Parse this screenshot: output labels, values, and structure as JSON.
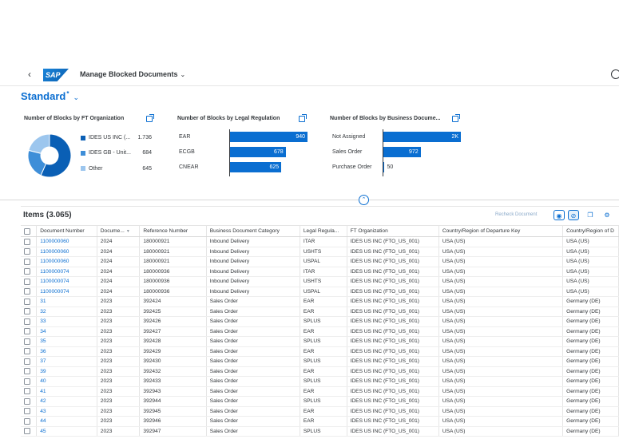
{
  "shell": {
    "logo": "SAP",
    "app_title": "Manage Blocked Documents"
  },
  "variant": {
    "name": "Standard",
    "modified_marker": "*"
  },
  "charts": [
    {
      "title": "Number of Blocks by FT Organization",
      "type": "donut",
      "legend": [
        {
          "label": "IDES US INC (...",
          "value": "1.736",
          "color": "#0a5fb5"
        },
        {
          "label": "IDES GB - Unit...",
          "value": "684",
          "color": "#3e8ed8"
        },
        {
          "label": "Other",
          "value": "645",
          "color": "#9cc6ee"
        }
      ]
    },
    {
      "title": "Number of Blocks by Legal Regulation",
      "type": "bar",
      "categories": [
        "EAR",
        "ECGB",
        "CNEAR"
      ],
      "values": [
        940,
        678,
        625
      ],
      "labels": [
        "940",
        "678",
        "625"
      ]
    },
    {
      "title": "Number of Blocks by Business Docume...",
      "type": "bar",
      "categories": [
        "Not Assigned",
        "Sales Order",
        "Purchase Order"
      ],
      "values": [
        2000,
        972,
        50
      ],
      "labels": [
        "2K",
        "972",
        "50"
      ]
    }
  ],
  "chart_data": [
    {
      "type": "pie",
      "title": "Number of Blocks by FT Organization",
      "categories": [
        "IDES US INC (...",
        "IDES GB - Unit...",
        "Other"
      ],
      "values": [
        1736,
        684,
        645
      ]
    },
    {
      "type": "bar",
      "title": "Number of Blocks by Legal Regulation",
      "categories": [
        "EAR",
        "ECGB",
        "CNEAR"
      ],
      "values": [
        940,
        678,
        625
      ]
    },
    {
      "type": "bar",
      "title": "Number of Blocks by Business Docume...",
      "categories": [
        "Not Assigned",
        "Sales Order",
        "Purchase Order"
      ],
      "values": [
        2000,
        972,
        50
      ]
    }
  ],
  "table": {
    "title": "Items (3.065)",
    "recheck_label": "Recheck Document",
    "columns": [
      "Document Number",
      "Docume...",
      "Reference Number",
      "Business Document Category",
      "Legal Regula...",
      "FT Organization",
      "Country/Region of Departure Key",
      "Country/Region of D"
    ],
    "rows": [
      [
        "1100000060",
        "2024",
        "180000921",
        "Inbound Delivery",
        "ITAR",
        "IDES US INC (FTO_US_001)",
        "USA (US)",
        "USA (US)"
      ],
      [
        "1100000060",
        "2024",
        "180000921",
        "Inbound Delivery",
        "USHTS",
        "IDES US INC (FTO_US_001)",
        "USA (US)",
        "USA (US)"
      ],
      [
        "1100000060",
        "2024",
        "180000921",
        "Inbound Delivery",
        "USPAL",
        "IDES US INC (FTO_US_001)",
        "USA (US)",
        "USA (US)"
      ],
      [
        "1100000074",
        "2024",
        "180000936",
        "Inbound Delivery",
        "ITAR",
        "IDES US INC (FTO_US_001)",
        "USA (US)",
        "USA (US)"
      ],
      [
        "1100000074",
        "2024",
        "180000936",
        "Inbound Delivery",
        "USHTS",
        "IDES US INC (FTO_US_001)",
        "USA (US)",
        "USA (US)"
      ],
      [
        "1100000074",
        "2024",
        "180000936",
        "Inbound Delivery",
        "USPAL",
        "IDES US INC (FTO_US_001)",
        "USA (US)",
        "USA (US)"
      ],
      [
        "31",
        "2023",
        "392424",
        "Sales Order",
        "EAR",
        "IDES US INC (FTO_US_001)",
        "USA (US)",
        "Germany (DE)"
      ],
      [
        "32",
        "2023",
        "392425",
        "Sales Order",
        "EAR",
        "IDES US INC (FTO_US_001)",
        "USA (US)",
        "Germany (DE)"
      ],
      [
        "33",
        "2023",
        "392426",
        "Sales Order",
        "SPLUS",
        "IDES US INC (FTO_US_001)",
        "USA (US)",
        "Germany (DE)"
      ],
      [
        "34",
        "2023",
        "392427",
        "Sales Order",
        "EAR",
        "IDES US INC (FTO_US_001)",
        "USA (US)",
        "Germany (DE)"
      ],
      [
        "35",
        "2023",
        "392428",
        "Sales Order",
        "SPLUS",
        "IDES US INC (FTO_US_001)",
        "USA (US)",
        "Germany (DE)"
      ],
      [
        "36",
        "2023",
        "392429",
        "Sales Order",
        "EAR",
        "IDES US INC (FTO_US_001)",
        "USA (US)",
        "Germany (DE)"
      ],
      [
        "37",
        "2023",
        "392430",
        "Sales Order",
        "SPLUS",
        "IDES US INC (FTO_US_001)",
        "USA (US)",
        "Germany (DE)"
      ],
      [
        "39",
        "2023",
        "392432",
        "Sales Order",
        "EAR",
        "IDES US INC (FTO_US_001)",
        "USA (US)",
        "Germany (DE)"
      ],
      [
        "40",
        "2023",
        "392433",
        "Sales Order",
        "SPLUS",
        "IDES US INC (FTO_US_001)",
        "USA (US)",
        "Germany (DE)"
      ],
      [
        "41",
        "2023",
        "392943",
        "Sales Order",
        "EAR",
        "IDES US INC (FTO_US_001)",
        "USA (US)",
        "Germany (DE)"
      ],
      [
        "42",
        "2023",
        "392944",
        "Sales Order",
        "SPLUS",
        "IDES US INC (FTO_US_001)",
        "USA (US)",
        "Germany (DE)"
      ],
      [
        "43",
        "2023",
        "392945",
        "Sales Order",
        "EAR",
        "IDES US INC (FTO_US_001)",
        "USA (US)",
        "Germany (DE)"
      ],
      [
        "44",
        "2023",
        "392946",
        "Sales Order",
        "EAR",
        "IDES US INC (FTO_US_001)",
        "USA (US)",
        "Germany (DE)"
      ],
      [
        "45",
        "2023",
        "392947",
        "Sales Order",
        "SPLUS",
        "IDES US INC (FTO_US_001)",
        "USA (US)",
        "Germany (DE)"
      ]
    ]
  },
  "colors": {
    "accent": "#0a6ed1",
    "bar": "#0a6ed1"
  }
}
